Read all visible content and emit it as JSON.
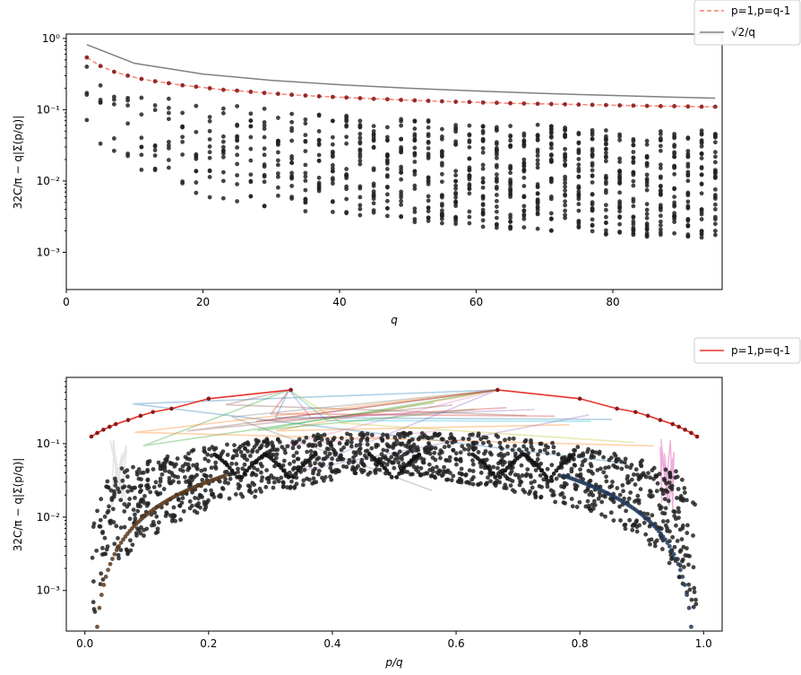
{
  "chart_data": [
    {
      "type": "scatter",
      "title": "",
      "xlabel": "q",
      "ylabel": "32C/π − q|Σ(p/q)|",
      "xlim": [
        0,
        96
      ],
      "ylim": [
        0.0003,
        1.15
      ],
      "yscale": "log",
      "xticks": [
        "0",
        "20",
        "40",
        "60",
        "80"
      ],
      "yticks": [
        "10⁻³",
        "10⁻²",
        "10⁻¹",
        "10⁰"
      ],
      "legend": [
        "p=1,p=q-1",
        "√2/q"
      ],
      "legend_position": "top-right",
      "series": [
        {
          "name": "p=1,p=q-1",
          "color": "#fa8072",
          "style": "dashed",
          "x": [
            3,
            5,
            7,
            9,
            11,
            13,
            15,
            17,
            19,
            21,
            23,
            25,
            27,
            29,
            31,
            33,
            35,
            37,
            39,
            41,
            43,
            45,
            47,
            49,
            51,
            53,
            55,
            57,
            59,
            61,
            63,
            65,
            67,
            69,
            71,
            73,
            75,
            77,
            79,
            81,
            83,
            85,
            87,
            89,
            91,
            93,
            95
          ],
          "values": [
            0.54,
            0.41,
            0.34,
            0.3,
            0.27,
            0.25,
            0.235,
            0.22,
            0.21,
            0.2,
            0.19,
            0.185,
            0.178,
            0.172,
            0.167,
            0.162,
            0.158,
            0.154,
            0.151,
            0.148,
            0.145,
            0.142,
            0.14,
            0.137,
            0.135,
            0.133,
            0.131,
            0.129,
            0.128,
            0.126,
            0.125,
            0.123,
            0.122,
            0.121,
            0.12,
            0.119,
            0.118,
            0.117,
            0.116,
            0.115,
            0.114,
            0.113,
            0.112,
            0.112,
            0.111,
            0.11,
            0.11
          ]
        },
        {
          "name": "√2/q",
          "color": "#808080",
          "style": "solid",
          "x": [
            3,
            10,
            20,
            30,
            40,
            50,
            60,
            70,
            80,
            90,
            95
          ],
          "values": [
            0.816,
            0.447,
            0.316,
            0.258,
            0.224,
            0.2,
            0.183,
            0.169,
            0.158,
            0.149,
            0.145
          ]
        }
      ],
      "scatter_color": "#222222"
    },
    {
      "type": "scatter",
      "title": "",
      "xlabel": "p/q",
      "ylabel": "32C/π − q|Σ(p/q)|",
      "xlim": [
        -0.03,
        1.03
      ],
      "ylim": [
        0.00028,
        0.8
      ],
      "yscale": "log",
      "xticks": [
        "0.0",
        "0.2",
        "0.4",
        "0.6",
        "0.8",
        "1.0"
      ],
      "yticks": [
        "10⁻³",
        "10⁻²",
        "10⁻¹"
      ],
      "legend": [
        "p=1,p=q-1"
      ],
      "legend_position": "top-right",
      "series": [
        {
          "name": "p=1,p=q-1",
          "color": "#e8322a",
          "style": "solid",
          "x": [
            0.0105,
            0.02,
            0.03,
            0.04,
            0.05,
            0.07,
            0.09,
            0.11,
            0.14,
            0.2,
            0.333,
            0.667,
            0.8,
            0.86,
            0.89,
            0.91,
            0.93,
            0.95,
            0.96,
            0.97,
            0.98,
            0.9895
          ],
          "values": [
            0.125,
            0.14,
            0.155,
            0.17,
            0.185,
            0.21,
            0.24,
            0.27,
            0.3,
            0.41,
            0.54,
            0.54,
            0.41,
            0.3,
            0.27,
            0.24,
            0.21,
            0.185,
            0.17,
            0.155,
            0.14,
            0.125
          ]
        }
      ],
      "scatter_color": "#222222"
    }
  ]
}
